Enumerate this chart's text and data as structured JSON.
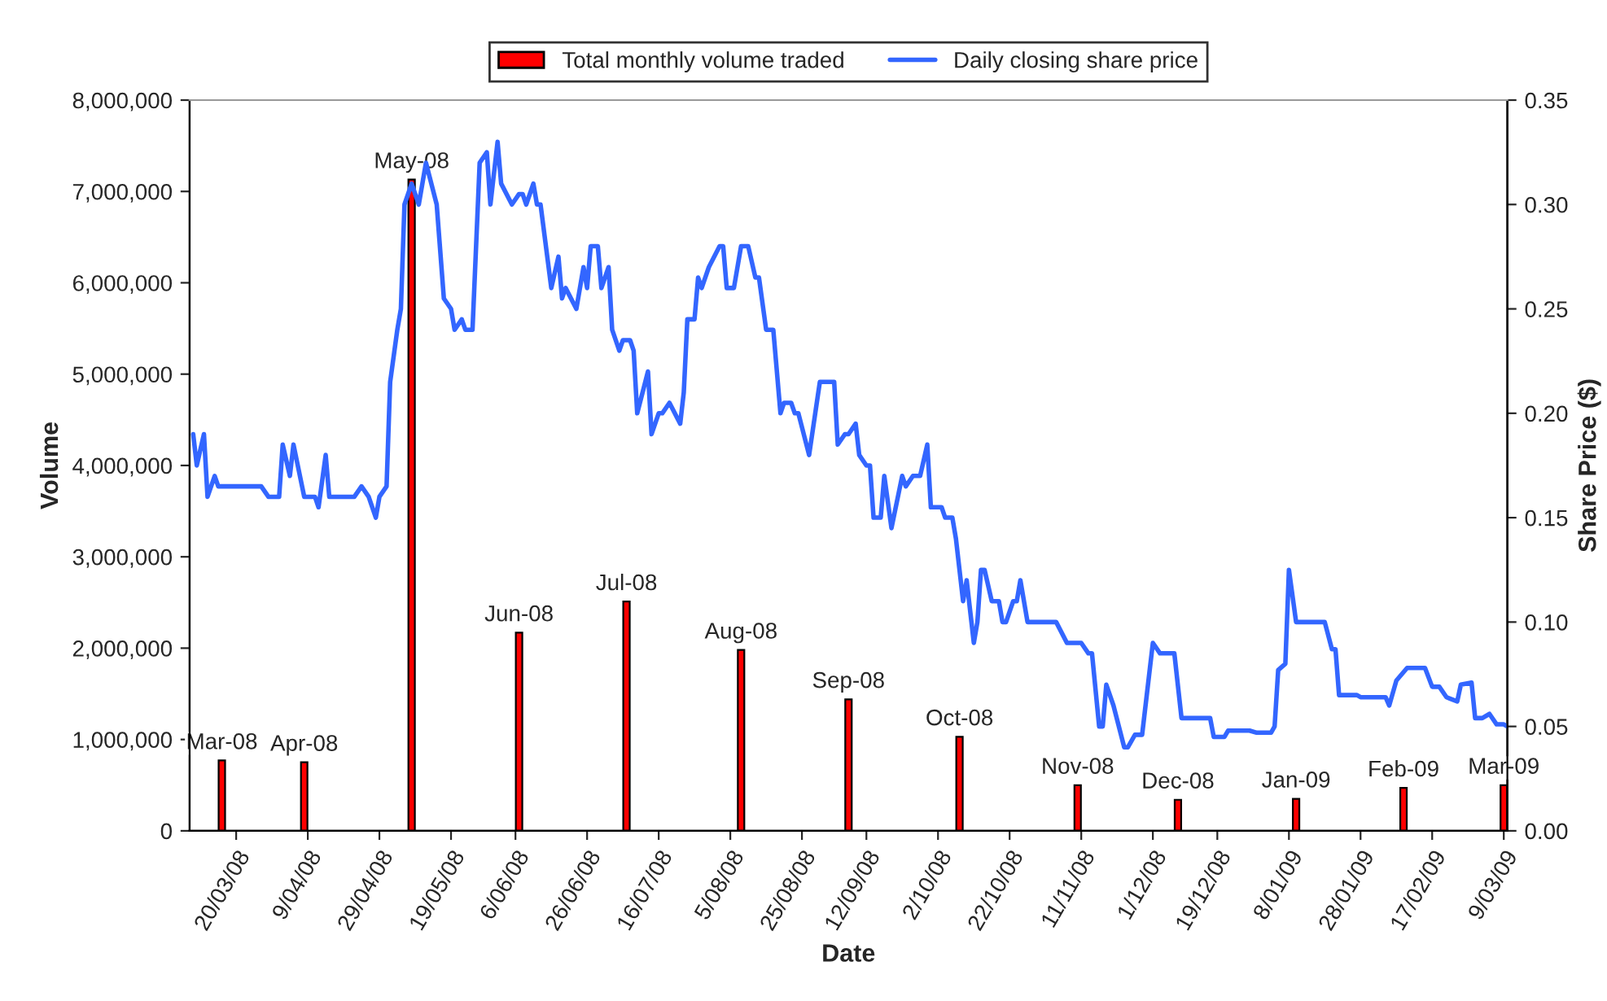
{
  "chart_data": {
    "type": "bar",
    "xlabel": "Date",
    "ylabel": "Volume",
    "y2label": "Share Price ($)",
    "legend": "top",
    "grid": false,
    "xlim": [
      "2008-03-07",
      "2009-03-10"
    ],
    "xticks": [
      {
        "value": "2008-03-20",
        "label": "20/03/08"
      },
      {
        "value": "2008-04-09",
        "label": "9/04/08"
      },
      {
        "value": "2008-04-29",
        "label": "29/04/08"
      },
      {
        "value": "2008-05-19",
        "label": "19/05/08"
      },
      {
        "value": "2008-06-06",
        "label": "6/06/08"
      },
      {
        "value": "2008-06-26",
        "label": "26/06/08"
      },
      {
        "value": "2008-07-16",
        "label": "16/07/08"
      },
      {
        "value": "2008-08-05",
        "label": "5/08/08"
      },
      {
        "value": "2008-08-25",
        "label": "25/08/08"
      },
      {
        "value": "2008-09-12",
        "label": "12/09/08"
      },
      {
        "value": "2008-10-02",
        "label": "2/10/08"
      },
      {
        "value": "2008-10-22",
        "label": "22/10/08"
      },
      {
        "value": "2008-11-11",
        "label": "11/11/08"
      },
      {
        "value": "2008-12-01",
        "label": "1/12/08"
      },
      {
        "value": "2008-12-19",
        "label": "19/12/08"
      },
      {
        "value": "2009-01-08",
        "label": "8/01/09"
      },
      {
        "value": "2009-01-28",
        "label": "28/01/09"
      },
      {
        "value": "2009-02-17",
        "label": "17/02/09"
      },
      {
        "value": "2009-03-09",
        "label": "9/03/09"
      }
    ],
    "ylim": [
      0,
      8000000
    ],
    "yticks": [
      0,
      {
        "value": 1000000,
        "label": "1,000,000"
      },
      {
        "value": 2000000,
        "label": "2,000,000"
      },
      {
        "value": 3000000,
        "label": "3,000,000"
      },
      {
        "value": 4000000,
        "label": "4,000,000"
      },
      {
        "value": 5000000,
        "label": "5,000,000"
      },
      {
        "value": 6000000,
        "label": "6,000,000"
      },
      {
        "value": 7000000,
        "label": "7,000,000"
      },
      {
        "value": 8000000,
        "label": "8,000,000"
      }
    ],
    "y2lim": [
      0,
      0.35
    ],
    "y2ticks": [
      {
        "value": 0,
        "label": "0.00"
      },
      {
        "value": 0.05,
        "label": "0.05"
      },
      {
        "value": 0.1,
        "label": "0.10"
      },
      {
        "value": 0.15,
        "label": "0.15"
      },
      {
        "value": 0.2,
        "label": "0.20"
      },
      {
        "value": 0.25,
        "label": "0.25"
      },
      {
        "value": 0.3,
        "label": "0.30"
      },
      {
        "value": 0.35,
        "label": "0.35"
      }
    ],
    "series": [
      {
        "axis": "y",
        "name": "Total monthly volume traded",
        "color": "#ff0000",
        "x": [
          "2008-03-16",
          "2008-04-08",
          "2008-05-08",
          "2008-06-07",
          "2008-07-07",
          "2008-08-08",
          "2008-09-07",
          "2008-10-08",
          "2008-11-10",
          "2008-12-08",
          "2009-01-10",
          "2009-02-09",
          "2009-03-09"
        ],
        "values": [
          770000,
          750000,
          7130000,
          2170000,
          2510000,
          1980000,
          1440000,
          1030000,
          500000,
          340000,
          350000,
          470000,
          500000
        ],
        "value_labels": [
          "Mar-08",
          "Apr-08",
          "May-08",
          "Jun-08",
          "Jul-08",
          "Aug-08",
          "Sep-08",
          "Oct-08",
          "Nov-08",
          "Dec-08",
          "Jan-09",
          "Feb-09",
          "Mar-09"
        ]
      },
      {
        "type": "line",
        "axis": "y2",
        "name": "Daily closing share price",
        "color": "#3366ff",
        "x": [
          "2008-03-08",
          "2008-03-09",
          "2008-03-11",
          "2008-03-12",
          "2008-03-14",
          "2008-03-15",
          "2008-03-27",
          "2008-03-29",
          "2008-04-01",
          "2008-04-02",
          "2008-04-04",
          "2008-04-05",
          "2008-04-08",
          "2008-04-11",
          "2008-04-12",
          "2008-04-14",
          "2008-04-15",
          "2008-04-22",
          "2008-04-24",
          "2008-04-26",
          "2008-04-28",
          "2008-04-29",
          "2008-05-01",
          "2008-05-02",
          "2008-05-04",
          "2008-05-05",
          "2008-05-06",
          "2008-05-08",
          "2008-05-10",
          "2008-05-12",
          "2008-05-15",
          "2008-05-17",
          "2008-05-19",
          "2008-05-20",
          "2008-05-22",
          "2008-05-23",
          "2008-05-25",
          "2008-05-27",
          "2008-05-29",
          "2008-05-30",
          "2008-06-01",
          "2008-06-02",
          "2008-06-05",
          "2008-06-07",
          "2008-06-08",
          "2008-06-09",
          "2008-06-11",
          "2008-06-12",
          "2008-06-13",
          "2008-06-16",
          "2008-06-18",
          "2008-06-19",
          "2008-06-20",
          "2008-06-23",
          "2008-06-25",
          "2008-06-26",
          "2008-06-27",
          "2008-06-29",
          "2008-06-30",
          "2008-07-02",
          "2008-07-03",
          "2008-07-05",
          "2008-07-06",
          "2008-07-08",
          "2008-07-09",
          "2008-07-10",
          "2008-07-13",
          "2008-07-14",
          "2008-07-16",
          "2008-07-17",
          "2008-07-19",
          "2008-07-22",
          "2008-07-23",
          "2008-07-24",
          "2008-07-26",
          "2008-07-27",
          "2008-07-28",
          "2008-07-30",
          "2008-08-02",
          "2008-08-03",
          "2008-08-04",
          "2008-08-06",
          "2008-08-08",
          "2008-08-10",
          "2008-08-12",
          "2008-08-13",
          "2008-08-15",
          "2008-08-17",
          "2008-08-19",
          "2008-08-20",
          "2008-08-22",
          "2008-08-23",
          "2008-08-24",
          "2008-08-27",
          "2008-08-30",
          "2008-09-03",
          "2008-09-04",
          "2008-09-06",
          "2008-09-07",
          "2008-09-09",
          "2008-09-10",
          "2008-09-12",
          "2008-09-13",
          "2008-09-14",
          "2008-09-16",
          "2008-09-17",
          "2008-09-19",
          "2008-09-22",
          "2008-09-23",
          "2008-09-25",
          "2008-09-27",
          "2008-09-29",
          "2008-09-30",
          "2008-10-03",
          "2008-10-04",
          "2008-10-06",
          "2008-10-07",
          "2008-10-09",
          "2008-10-10",
          "2008-10-12",
          "2008-10-13",
          "2008-10-14",
          "2008-10-15",
          "2008-10-17",
          "2008-10-19",
          "2008-10-20",
          "2008-10-21",
          "2008-10-23",
          "2008-10-24",
          "2008-10-25",
          "2008-10-27",
          "2008-11-04",
          "2008-11-07",
          "2008-11-11",
          "2008-11-13",
          "2008-11-14",
          "2008-11-16",
          "2008-11-17",
          "2008-11-18",
          "2008-11-20",
          "2008-11-23",
          "2008-11-24",
          "2008-11-26",
          "2008-11-28",
          "2008-12-01",
          "2008-12-03",
          "2008-12-07",
          "2008-12-09",
          "2008-12-17",
          "2008-12-18",
          "2008-12-21",
          "2008-12-22",
          "2008-12-28",
          "2008-12-30",
          "2009-01-03",
          "2009-01-04",
          "2009-01-05",
          "2009-01-07",
          "2009-01-08",
          "2009-01-10",
          "2009-01-18",
          "2009-01-20",
          "2009-01-21",
          "2009-01-22",
          "2009-01-27",
          "2009-01-28",
          "2009-02-04",
          "2009-02-05",
          "2009-02-07",
          "2009-02-10",
          "2009-02-15",
          "2009-02-17",
          "2009-02-19",
          "2009-02-21",
          "2009-02-24",
          "2009-02-25",
          "2009-02-28",
          "2009-03-01",
          "2009-03-03",
          "2009-03-05",
          "2009-03-07",
          "2009-03-09",
          "2009-03-10"
        ],
        "values": [
          0.19,
          0.175,
          0.19,
          0.16,
          0.17,
          0.165,
          0.165,
          0.16,
          0.16,
          0.185,
          0.17,
          0.185,
          0.16,
          0.16,
          0.155,
          0.18,
          0.16,
          0.16,
          0.165,
          0.16,
          0.15,
          0.16,
          0.165,
          0.215,
          0.24,
          0.25,
          0.3,
          0.31,
          0.3,
          0.32,
          0.3,
          0.255,
          0.25,
          0.24,
          0.245,
          0.24,
          0.24,
          0.32,
          0.325,
          0.3,
          0.33,
          0.31,
          0.3,
          0.305,
          0.305,
          0.3,
          0.31,
          0.3,
          0.3,
          0.26,
          0.275,
          0.255,
          0.26,
          0.25,
          0.27,
          0.26,
          0.28,
          0.28,
          0.26,
          0.27,
          0.24,
          0.23,
          0.235,
          0.235,
          0.23,
          0.2,
          0.22,
          0.19,
          0.2,
          0.2,
          0.205,
          0.195,
          0.21,
          0.245,
          0.245,
          0.265,
          0.26,
          0.27,
          0.28,
          0.28,
          0.26,
          0.26,
          0.28,
          0.28,
          0.265,
          0.265,
          0.24,
          0.24,
          0.2,
          0.205,
          0.205,
          0.2,
          0.2,
          0.18,
          0.215,
          0.215,
          0.185,
          0.19,
          0.19,
          0.195,
          0.18,
          0.175,
          0.175,
          0.15,
          0.15,
          0.17,
          0.145,
          0.17,
          0.165,
          0.17,
          0.17,
          0.185,
          0.155,
          0.155,
          0.15,
          0.15,
          0.14,
          0.11,
          0.12,
          0.09,
          0.1,
          0.125,
          0.125,
          0.11,
          0.11,
          0.1,
          0.1,
          0.11,
          0.11,
          0.12,
          0.1,
          0.1,
          0.09,
          0.09,
          0.085,
          0.085,
          0.05,
          0.05,
          0.07,
          0.06,
          0.04,
          0.04,
          0.046,
          0.046,
          0.09,
          0.085,
          0.085,
          0.054,
          0.054,
          0.045,
          0.045,
          0.048,
          0.048,
          0.047,
          0.047,
          0.05,
          0.077,
          0.08,
          0.125,
          0.1,
          0.1,
          0.087,
          0.087,
          0.065,
          0.065,
          0.064,
          0.064,
          0.06,
          0.072,
          0.078,
          0.078,
          0.069,
          0.069,
          0.064,
          0.062,
          0.07,
          0.071,
          0.054,
          0.054,
          0.056,
          0.051,
          0.051,
          0.05
        ]
      }
    ]
  }
}
